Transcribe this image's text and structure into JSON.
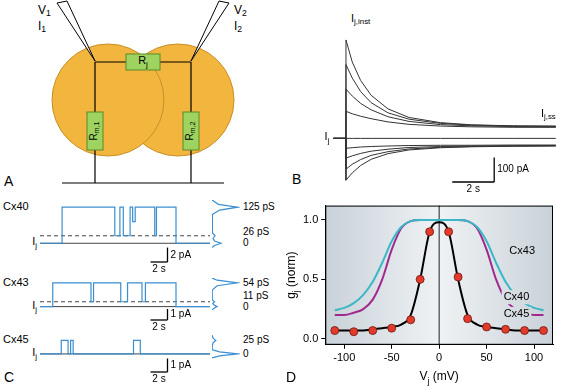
{
  "diagram": {
    "letter": "A",
    "electrodes": [
      {
        "voltage": {
          "base": "V",
          "sub": "1"
        },
        "current": {
          "base": "I",
          "sub": "1"
        }
      },
      {
        "voltage": {
          "base": "V",
          "sub": "2"
        },
        "current": {
          "base": "I",
          "sub": "2"
        }
      }
    ],
    "resistors": {
      "junction": {
        "base": "R",
        "sub": "j"
      },
      "membrane": [
        {
          "base": "R",
          "sub": "m,1"
        },
        {
          "base": "R",
          "sub": "m,2"
        }
      ]
    }
  },
  "chart_data": [
    {
      "letter": "B",
      "type": "line",
      "color": "#333333",
      "tick_labels": false,
      "grid": false,
      "x": [
        -0.6,
        0,
        0,
        0.3,
        0.7,
        1.2,
        2,
        3,
        4.5,
        6,
        8,
        10
      ],
      "xlim": [
        -1,
        10.2
      ],
      "ylim": [
        -230,
        420
      ],
      "series": [
        {
          "values": [
            0,
            0,
            0,
            0,
            0,
            0,
            0,
            0,
            0,
            0,
            0,
            0
          ]
        },
        {
          "values": [
            0,
            0,
            400,
            310,
            235,
            175,
            120,
            85,
            64,
            55,
            51,
            50
          ]
        },
        {
          "values": [
            0,
            0,
            300,
            245,
            190,
            145,
            104,
            78,
            61,
            54,
            50,
            49
          ]
        },
        {
          "values": [
            0,
            0,
            200,
            172,
            142,
            116,
            88,
            69,
            56,
            51,
            48,
            47
          ]
        },
        {
          "values": [
            0,
            0,
            110,
            100,
            90,
            80,
            67,
            57,
            50,
            47,
            45,
            45
          ]
        },
        {
          "values": [
            0,
            0,
            -170,
            -140,
            -110,
            -85,
            -62,
            -47,
            -38,
            -34,
            -32,
            -31
          ]
        },
        {
          "values": [
            0,
            0,
            -125,
            -105,
            -86,
            -69,
            -54,
            -43,
            -36,
            -33,
            -31,
            -30
          ]
        },
        {
          "values": [
            0,
            0,
            -80,
            -71,
            -61,
            -52,
            -44,
            -37,
            -33,
            -31,
            -30,
            -29
          ]
        },
        {
          "values": [
            0,
            0,
            -40,
            -38,
            -35,
            -33,
            -31,
            -29,
            -28,
            -28,
            -27,
            -27
          ]
        }
      ],
      "labels": {
        "instantaneous": {
          "base": "I",
          "sub": "j,inst"
        },
        "steady_state": {
          "base": "I",
          "sub": "j,ss"
        },
        "baseline": {
          "base": "I",
          "sub": "j"
        }
      },
      "scale_bars": [
        {
          "axis": "x",
          "value": 2,
          "label": "2 s"
        },
        {
          "axis": "y",
          "value": 100,
          "label": "100 pA"
        }
      ]
    },
    {
      "letter": "C",
      "type": "line",
      "color": "#3b8fd1",
      "tick_labels": false,
      "grid": false,
      "rows": [
        {
          "title": "Cx40",
          "x": [
            0,
            2.6,
            2.6,
            8.8,
            8.8,
            9.4,
            9.4,
            9.8,
            9.8,
            10.6,
            10.6,
            10.9,
            10.9,
            11.2,
            11.2,
            13.5,
            13.5,
            13.7,
            13.7,
            16,
            16,
            20
          ],
          "values": [
            0,
            0,
            5,
            5,
            1.04,
            1.04,
            5,
            5,
            1.04,
            1.04,
            5,
            5,
            3,
            3,
            5,
            5,
            1.04,
            1.04,
            5,
            5,
            0,
            0
          ],
          "xlim": [
            0,
            20
          ],
          "ylim": [
            -4.4,
            6
          ],
          "reference_lines": [
            {
              "value": 1.04,
              "line_style": "dashed"
            },
            {
              "value": 0,
              "line_style": "solid"
            }
          ],
          "baseline_label": {
            "base": "I",
            "sub": "j"
          },
          "scale_bars": [
            {
              "axis": "x",
              "value": 2,
              "label": "2 s"
            },
            {
              "axis": "y",
              "value": 2,
              "label": "2 pA"
            }
          ],
          "histogram": {
            "current": [
              -0.6,
              -0.3,
              0,
              0.3,
              0.7,
              1.04,
              1.4,
              2,
              3,
              4,
              4.6,
              5,
              5.4,
              6
            ],
            "counts": [
              0,
              10,
              35,
              10,
              4,
              12,
              3,
              1,
              1,
              3,
              30,
              100,
              25,
              0
            ],
            "xlim": [
              0,
              110
            ],
            "peaks": [
              {
                "value": 5,
                "label": "125 pS"
              },
              {
                "value": 1.04,
                "label": "26 pS"
              },
              {
                "value": 0,
                "label": "0"
              }
            ]
          }
        },
        {
          "title": "Cx43",
          "x": [
            0,
            1.5,
            1.5,
            6,
            6,
            6.3,
            6.3,
            9.5,
            9.5,
            10.3,
            10.3,
            12,
            12,
            12.4,
            12.4,
            16,
            16,
            20
          ],
          "values": [
            0,
            0,
            2.16,
            2.16,
            0.44,
            0.44,
            2.16,
            2.16,
            0.44,
            0.44,
            2.16,
            2.16,
            0.44,
            0.44,
            2.16,
            2.16,
            0,
            0
          ],
          "xlim": [
            0,
            20
          ],
          "ylim": [
            -2.4,
            2.6
          ],
          "reference_lines": [
            {
              "value": 0.44,
              "line_style": "dashed"
            },
            {
              "value": 0,
              "line_style": "solid"
            }
          ],
          "baseline_label": {
            "base": "I",
            "sub": "j"
          },
          "scale_bars": [
            {
              "axis": "x",
              "value": 2,
              "label": "2 s"
            },
            {
              "axis": "y",
              "value": 1,
              "label": "1 pA"
            }
          ],
          "histogram": {
            "current": [
              -0.3,
              -0.15,
              0,
              0.15,
              0.3,
              0.44,
              0.6,
              1,
              1.5,
              1.9,
              2.16,
              2.4,
              2.6
            ],
            "counts": [
              0,
              8,
              20,
              8,
              3,
              10,
              2,
              1,
              1,
              20,
              100,
              20,
              0
            ],
            "xlim": [
              0,
              110
            ],
            "peaks": [
              {
                "value": 2.16,
                "label": "54 pS"
              },
              {
                "value": 0.44,
                "label": "11 pS"
              },
              {
                "value": 0,
                "label": "0"
              }
            ]
          }
        },
        {
          "title": "Cx45",
          "x": [
            0,
            2.5,
            2.5,
            3.3,
            3.3,
            3.6,
            3.6,
            3.9,
            3.9,
            11,
            11,
            11.8,
            11.8,
            20
          ],
          "values": [
            0,
            0,
            1,
            1,
            0,
            0,
            1,
            1,
            0,
            0,
            1,
            1,
            0,
            0
          ],
          "xlim": [
            0,
            20
          ],
          "ylim": [
            -2.3,
            1.4
          ],
          "reference_lines": [
            {
              "value": 0,
              "line_style": "solid"
            }
          ],
          "baseline_label": {
            "base": "I",
            "sub": "j"
          },
          "scale_bars": [
            {
              "axis": "x",
              "value": 2,
              "label": "2 s"
            },
            {
              "axis": "y",
              "value": 1,
              "label": "1 pA"
            }
          ],
          "histogram": {
            "current": [
              -0.3,
              -0.15,
              0,
              0.15,
              0.3,
              0.6,
              0.85,
              1,
              1.15,
              1.4
            ],
            "counts": [
              0,
              30,
              100,
              30,
              2,
              1,
              5,
              15,
              5,
              0
            ],
            "xlim": [
              0,
              110
            ],
            "peaks": [
              {
                "value": 1,
                "label": "25 pS"
              },
              {
                "value": 0,
                "label": "0"
              }
            ]
          }
        }
      ]
    },
    {
      "letter": "D",
      "type": "line",
      "grid": false,
      "x": [
        -110,
        -100,
        -90,
        -80,
        -70,
        -60,
        -50,
        -40,
        -30,
        -20,
        -10,
        0,
        10,
        20,
        30,
        40,
        50,
        60,
        70,
        80,
        90,
        100,
        110
      ],
      "xlim": [
        -120,
        120
      ],
      "xticks": [
        -100,
        -50,
        0,
        50,
        100
      ],
      "ylim": [
        -0.05,
        1.12
      ],
      "yticks": [
        {
          "value": 0,
          "label": "0.0"
        },
        {
          "value": 0.5,
          "label": "0.5"
        },
        {
          "value": 1,
          "label": "1.0"
        }
      ],
      "x_label": {
        "base": "V",
        "sub": "j",
        "tail": " (mV)"
      },
      "y_label": {
        "base": "g",
        "sub": "j",
        "tail": " (norm)"
      },
      "reference_lines": [
        {
          "axis": "x",
          "value": 0,
          "line_style": "solid"
        }
      ],
      "series": [
        {
          "name": "Cx43",
          "color": "#3bb8c6",
          "values": [
            0.24,
            0.26,
            0.3,
            0.37,
            0.48,
            0.64,
            0.82,
            0.94,
            0.99,
            1,
            1,
            1,
            1,
            1,
            0.99,
            0.94,
            0.82,
            0.64,
            0.48,
            0.37,
            0.3,
            0.26,
            0.24
          ]
        },
        {
          "name": "Cx40",
          "color": "#a0298f",
          "values": [
            0.2,
            0.2,
            0.22,
            0.25,
            0.33,
            0.5,
            0.75,
            0.93,
            0.99,
            1,
            1,
            1,
            1,
            1,
            0.99,
            0.93,
            0.75,
            0.5,
            0.33,
            0.25,
            0.22,
            0.2,
            0.2
          ]
        },
        {
          "name": "Cx45",
          "color": "#000000",
          "values": [
            0.07,
            0.07,
            0.07,
            0.07,
            0.08,
            0.09,
            0.1,
            0.12,
            0.2,
            0.5,
            0.9,
            0.98,
            0.9,
            0.5,
            0.2,
            0.12,
            0.1,
            0.09,
            0.08,
            0.07,
            0.07,
            0.07,
            0.07
          ]
        },
        {
          "type": "scatter",
          "marker": "circle",
          "color": "#e23b2c",
          "x": [
            -110,
            -90,
            -70,
            -50,
            -30,
            -20,
            -10,
            10,
            20,
            30,
            50,
            70,
            90,
            110
          ],
          "values": [
            0.07,
            0.06,
            0.07,
            0.09,
            0.16,
            0.5,
            0.9,
            0.9,
            0.52,
            0.17,
            0.1,
            0.08,
            0.07,
            0.07
          ]
        }
      ]
    }
  ]
}
